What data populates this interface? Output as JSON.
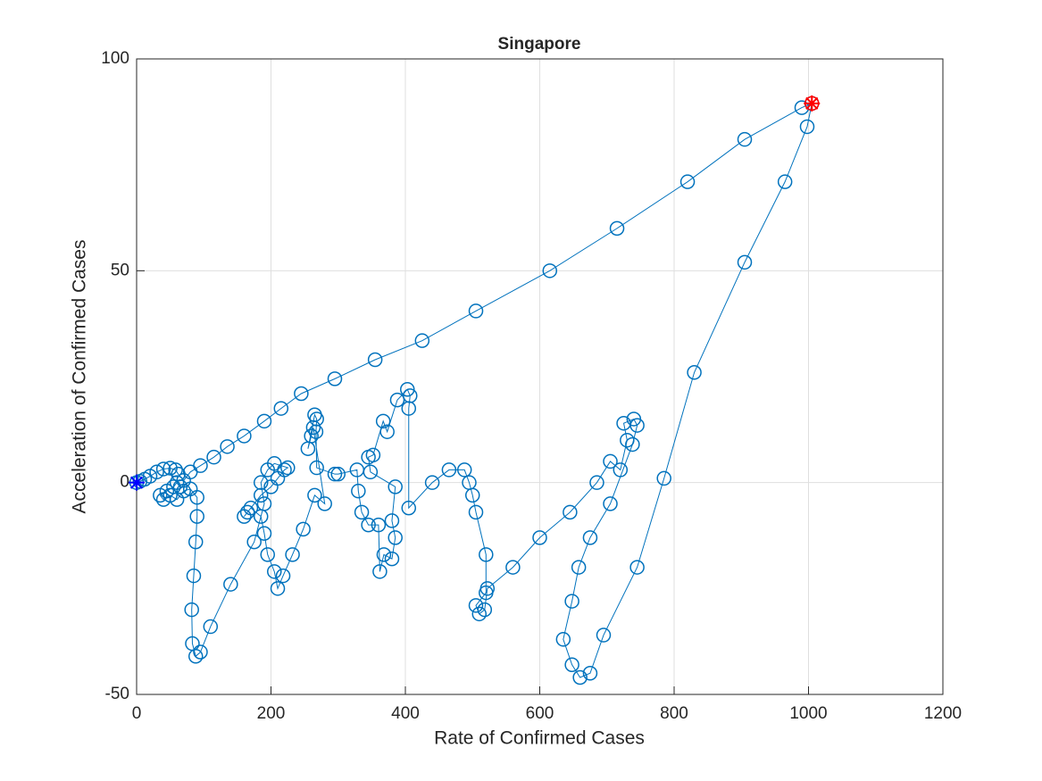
{
  "chart_data": {
    "type": "scatter",
    "title": "Singapore",
    "x_label": "Rate of Confirmed Cases",
    "y_label": "Acceleration of Confirmed Cases",
    "xlim": [
      0,
      1200
    ],
    "xticks": [
      0,
      200,
      400,
      600,
      800,
      1000,
      1200
    ],
    "ylim": [
      -50,
      100
    ],
    "yticks": [
      -50,
      0,
      50,
      100
    ],
    "grid": true,
    "series": [
      {
        "color": "#0072bd",
        "marker": "circle",
        "line": true,
        "x": [
          0,
          5,
          12,
          20,
          30,
          40,
          50,
          58,
          62,
          70,
          80,
          95,
          115,
          135,
          160,
          190,
          215,
          245,
          295,
          355,
          425,
          505,
          615,
          715,
          820,
          905,
          990,
          1005,
          998,
          965,
          905,
          830,
          785,
          745,
          695,
          675,
          660,
          648,
          635,
          648,
          658,
          675,
          705,
          738,
          745,
          740,
          725,
          730,
          720,
          705,
          685,
          645,
          600,
          560,
          522,
          518,
          510,
          505,
          520,
          520,
          505,
          500,
          495,
          488,
          465,
          440,
          405,
          405,
          407,
          403,
          388,
          373,
          367,
          352,
          345,
          348,
          385,
          380,
          385,
          380,
          368,
          362,
          360,
          345,
          335,
          330,
          328,
          300,
          295,
          268,
          267,
          268,
          265,
          255,
          260,
          263,
          280,
          265,
          248,
          232,
          218,
          210,
          205,
          195,
          190,
          185,
          170,
          160,
          165,
          185,
          200,
          210,
          220,
          225,
          205,
          195,
          185,
          190,
          175,
          140,
          110,
          95,
          88,
          83,
          82,
          85,
          88,
          90,
          90,
          80,
          70,
          60,
          50,
          40,
          35,
          45,
          55,
          60,
          65
        ],
        "values": [
          0,
          0.3,
          0.8,
          1.5,
          2.5,
          3.2,
          3.4,
          3,
          2,
          0.5,
          2.5,
          4,
          6,
          8.5,
          11,
          14.5,
          17.5,
          21,
          24.5,
          29,
          33.5,
          40.5,
          50,
          60,
          71,
          81,
          88.5,
          89.5,
          84,
          71,
          52,
          26,
          1,
          -20,
          -36,
          -45,
          -46,
          -43,
          -37,
          -28,
          -20,
          -13,
          -5,
          9,
          13.5,
          15,
          14,
          10,
          3,
          5,
          0,
          -7,
          -13,
          -20,
          -25,
          -30,
          -31,
          -29,
          -26,
          -17,
          -7,
          -3,
          0,
          3,
          3,
          0,
          -6,
          17.5,
          20.5,
          22,
          19.5,
          12,
          14.5,
          6.5,
          6,
          2.5,
          -1,
          -9,
          -13,
          -18,
          -17,
          -21,
          -10,
          -10,
          -7,
          -2,
          3,
          2,
          2,
          3.5,
          12,
          15,
          16,
          8,
          11,
          13,
          -5,
          -3,
          -11,
          -17,
          -22,
          -25,
          -21,
          -17,
          -12,
          -8,
          -6,
          -8,
          -7,
          -3,
          -1,
          1,
          3,
          3.5,
          4.5,
          3,
          0,
          -5,
          -14,
          -24,
          -34,
          -40,
          -41,
          -38,
          -30,
          -22,
          -14,
          -8,
          -3.5,
          -1.5,
          -2,
          -4,
          -3,
          -4,
          -3,
          -2,
          -1,
          0,
          -1
        ]
      },
      {
        "color": "#0000ff",
        "marker": "asterisk",
        "line": false,
        "x": [
          0
        ],
        "values": [
          0
        ]
      },
      {
        "color": "#ff0000",
        "marker": "star",
        "line": false,
        "x": [
          1005
        ],
        "values": [
          89.5
        ]
      }
    ]
  }
}
